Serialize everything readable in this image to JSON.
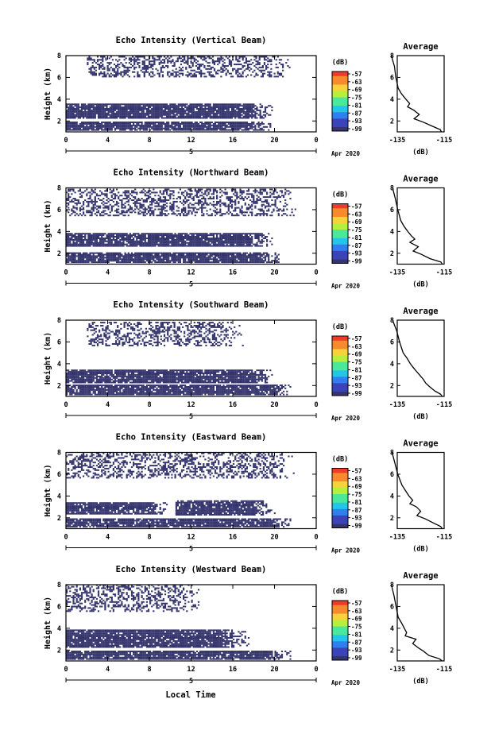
{
  "figure": {
    "date_label": "Apr 2020",
    "time_axis_date": "5",
    "x_axis_label": "Local Time",
    "y_axis_label": "Height (km)",
    "colorbar_unit": "(dB)",
    "colorbar_ticks": [
      "-57",
      "-63",
      "-69",
      "-75",
      "-81",
      "-87",
      "-93",
      "-99"
    ],
    "avg_title": "Average",
    "avg_x_label": "(dB)",
    "avg_x_ticks": [
      "-135",
      "-115"
    ],
    "colors": {
      "echo": "#35356e",
      "colorbar": [
        "#35356e",
        "#3a44b8",
        "#2f7ff0",
        "#24c6e8",
        "#4be89a",
        "#b8ee3c",
        "#f7d23a",
        "#f78a2c",
        "#ee3b2a"
      ]
    }
  },
  "chart_data": [
    {
      "type": "heatmap",
      "title": "Echo Intensity (Vertical Beam)",
      "xlabel": "",
      "ylabel": "Height (km)",
      "xlim": [
        0,
        24
      ],
      "ylim": [
        1,
        8
      ],
      "xticks": [
        "0",
        "4",
        "8",
        "12",
        "16",
        "20",
        "0"
      ],
      "yticks": [
        "2",
        "4",
        "6",
        "8"
      ],
      "color_scale": {
        "unit": "dB",
        "min": -99,
        "max": -57
      },
      "echo_regions": [
        {
          "x": [
            0,
            20
          ],
          "y": [
            1.1,
            1.9
          ],
          "level_dB": -97
        },
        {
          "x": [
            0,
            20
          ],
          "y": [
            2.2,
            3.6
          ],
          "level_dB": -97
        },
        {
          "x": [
            2,
            22
          ],
          "y": [
            6.0,
            7.9
          ],
          "level_dB": -96,
          "density": "scattered"
        }
      ],
      "average_profile": {
        "title": "Average",
        "xlabel": "(dB)",
        "xlim": [
          -135,
          -115
        ],
        "xticks": [
          "-135",
          "-115"
        ],
        "ylim": [
          1,
          8
        ],
        "yticks": [
          "2",
          "4",
          "6",
          "8"
        ],
        "height_km": [
          8.0,
          7.0,
          6.0,
          5.0,
          4.5,
          4.0,
          3.6,
          3.3,
          3.0,
          2.6,
          2.2,
          1.9,
          1.5,
          1.2,
          1.0
        ],
        "power_dB": [
          -137.5,
          -136.2,
          -135.6,
          -134.6,
          -133.2,
          -131.3,
          -129.7,
          -130.6,
          -128.0,
          -125.6,
          -127.8,
          -124.0,
          -119.8,
          -116.6,
          -116.2
        ]
      }
    },
    {
      "type": "heatmap",
      "title": "Echo Intensity (Northward Beam)",
      "xlabel": "",
      "ylabel": "Height (km)",
      "xlim": [
        0,
        24
      ],
      "ylim": [
        1,
        8
      ],
      "xticks": [
        "0",
        "4",
        "8",
        "12",
        "16",
        "20",
        "0"
      ],
      "yticks": [
        "2",
        "4",
        "6",
        "8"
      ],
      "color_scale": {
        "unit": "dB",
        "min": -99,
        "max": -57
      },
      "echo_regions": [
        {
          "x": [
            0,
            21
          ],
          "y": [
            1.1,
            2.0
          ],
          "level_dB": -97
        },
        {
          "x": [
            0,
            20
          ],
          "y": [
            2.6,
            3.8
          ],
          "level_dB": -97
        },
        {
          "x": [
            0,
            22
          ],
          "y": [
            5.4,
            7.9
          ],
          "level_dB": -96,
          "density": "scattered"
        }
      ],
      "average_profile": {
        "title": "Average",
        "xlabel": "(dB)",
        "xlim": [
          -135,
          -115
        ],
        "xticks": [
          "-135",
          "-115"
        ],
        "ylim": [
          1,
          8
        ],
        "yticks": [
          "2",
          "4",
          "6",
          "8"
        ],
        "height_km": [
          8.0,
          7.0,
          6.0,
          5.0,
          4.5,
          4.0,
          3.6,
          3.3,
          3.0,
          2.6,
          2.2,
          1.9,
          1.5,
          1.2,
          1.0
        ],
        "power_dB": [
          -137.0,
          -135.8,
          -134.8,
          -133.5,
          -132.2,
          -130.5,
          -129.0,
          -127.5,
          -129.6,
          -126.0,
          -128.2,
          -124.7,
          -121.0,
          -116.4,
          -115.8
        ]
      }
    },
    {
      "type": "heatmap",
      "title": "Echo Intensity (Southward Beam)",
      "xlabel": "",
      "ylabel": "Height (km)",
      "xlim": [
        0,
        24
      ],
      "ylim": [
        1,
        8
      ],
      "xticks": [
        "0",
        "4",
        "8",
        "12",
        "16",
        "20",
        "0"
      ],
      "yticks": [
        "2",
        "4",
        "6",
        "8"
      ],
      "color_scale": {
        "unit": "dB",
        "min": -99,
        "max": -57
      },
      "echo_regions": [
        {
          "x": [
            0,
            22
          ],
          "y": [
            1.1,
            2.0
          ],
          "level_dB": -97
        },
        {
          "x": [
            0,
            20
          ],
          "y": [
            2.2,
            3.4
          ],
          "level_dB": -97
        },
        {
          "x": [
            2,
            17
          ],
          "y": [
            5.6,
            7.8
          ],
          "level_dB": -96,
          "density": "scattered"
        }
      ],
      "average_profile": {
        "title": "Average",
        "xlabel": "(dB)",
        "xlim": [
          -135,
          -115
        ],
        "xticks": [
          "-135",
          "-115"
        ],
        "ylim": [
          1,
          8
        ],
        "yticks": [
          "2",
          "4",
          "6",
          "8"
        ],
        "height_km": [
          8.0,
          7.0,
          6.0,
          5.0,
          4.5,
          4.0,
          3.6,
          3.3,
          3.0,
          2.6,
          2.2,
          1.9,
          1.5,
          1.2,
          1.0
        ],
        "power_dB": [
          -137.0,
          -135.2,
          -134.0,
          -132.5,
          -130.8,
          -129.4,
          -128.0,
          -126.8,
          -125.6,
          -124.0,
          -122.8,
          -121.2,
          -119.0,
          -116.5,
          -115.8
        ]
      }
    },
    {
      "type": "heatmap",
      "title": "Echo Intensity (Eastward Beam)",
      "xlabel": "",
      "ylabel": "Height (km)",
      "xlim": [
        0,
        24
      ],
      "ylim": [
        1,
        8
      ],
      "xticks": [
        "0",
        "4",
        "8",
        "12",
        "16",
        "20",
        "0"
      ],
      "yticks": [
        "2",
        "4",
        "6",
        "8"
      ],
      "color_scale": {
        "unit": "dB",
        "min": -99,
        "max": -57
      },
      "echo_regions": [
        {
          "x": [
            0,
            22
          ],
          "y": [
            1.1,
            1.9
          ],
          "level_dB": -97
        },
        {
          "x": [
            0,
            10
          ],
          "y": [
            2.3,
            3.4
          ],
          "level_dB": -97
        },
        {
          "x": [
            10.5,
            20
          ],
          "y": [
            2.2,
            3.5
          ],
          "level_dB": -97
        },
        {
          "x": [
            0,
            22
          ],
          "y": [
            5.6,
            7.9
          ],
          "level_dB": -96,
          "density": "scattered"
        }
      ],
      "average_profile": {
        "title": "Average",
        "xlabel": "(dB)",
        "xlim": [
          -135,
          -115
        ],
        "xticks": [
          "-135",
          "-115"
        ],
        "ylim": [
          1,
          8
        ],
        "yticks": [
          "2",
          "4",
          "6",
          "8"
        ],
        "height_km": [
          8.0,
          7.0,
          6.0,
          5.0,
          4.5,
          4.0,
          3.6,
          3.3,
          3.0,
          2.6,
          2.2,
          1.9,
          1.5,
          1.2,
          1.0
        ],
        "power_dB": [
          -137.2,
          -136.0,
          -134.8,
          -133.0,
          -131.5,
          -130.0,
          -128.4,
          -129.6,
          -126.8,
          -125.0,
          -126.6,
          -123.0,
          -119.4,
          -116.5,
          -115.8
        ]
      }
    },
    {
      "type": "heatmap",
      "title": "Echo Intensity (Westward Beam)",
      "xlabel": "Local Time",
      "ylabel": "Height (km)",
      "xlim": [
        0,
        24
      ],
      "ylim": [
        1,
        8
      ],
      "xticks": [
        "0",
        "4",
        "8",
        "12",
        "16",
        "20",
        "0"
      ],
      "yticks": [
        "2",
        "4",
        "6",
        "8"
      ],
      "color_scale": {
        "unit": "dB",
        "min": -99,
        "max": -57
      },
      "echo_regions": [
        {
          "x": [
            0,
            22
          ],
          "y": [
            1.1,
            1.9
          ],
          "level_dB": -97
        },
        {
          "x": [
            0,
            17.5
          ],
          "y": [
            2.2,
            3.8
          ],
          "level_dB": -97
        },
        {
          "x": [
            0,
            13
          ],
          "y": [
            5.5,
            7.9
          ],
          "level_dB": -96,
          "density": "scattered"
        }
      ],
      "average_profile": {
        "title": "Average",
        "xlabel": "(dB)",
        "xlim": [
          -135,
          -115
        ],
        "xticks": [
          "-135",
          "-115"
        ],
        "ylim": [
          1,
          8
        ],
        "yticks": [
          "2",
          "4",
          "6",
          "8"
        ],
        "height_km": [
          8.0,
          7.0,
          6.0,
          5.0,
          4.5,
          4.0,
          3.6,
          3.3,
          3.0,
          2.6,
          2.2,
          1.9,
          1.5,
          1.2,
          1.0
        ],
        "power_dB": [
          -137.5,
          -136.4,
          -135.5,
          -134.6,
          -133.2,
          -132.0,
          -131.0,
          -131.6,
          -127.0,
          -128.4,
          -126.0,
          -123.8,
          -121.5,
          -117.0,
          -115.8
        ]
      }
    }
  ]
}
